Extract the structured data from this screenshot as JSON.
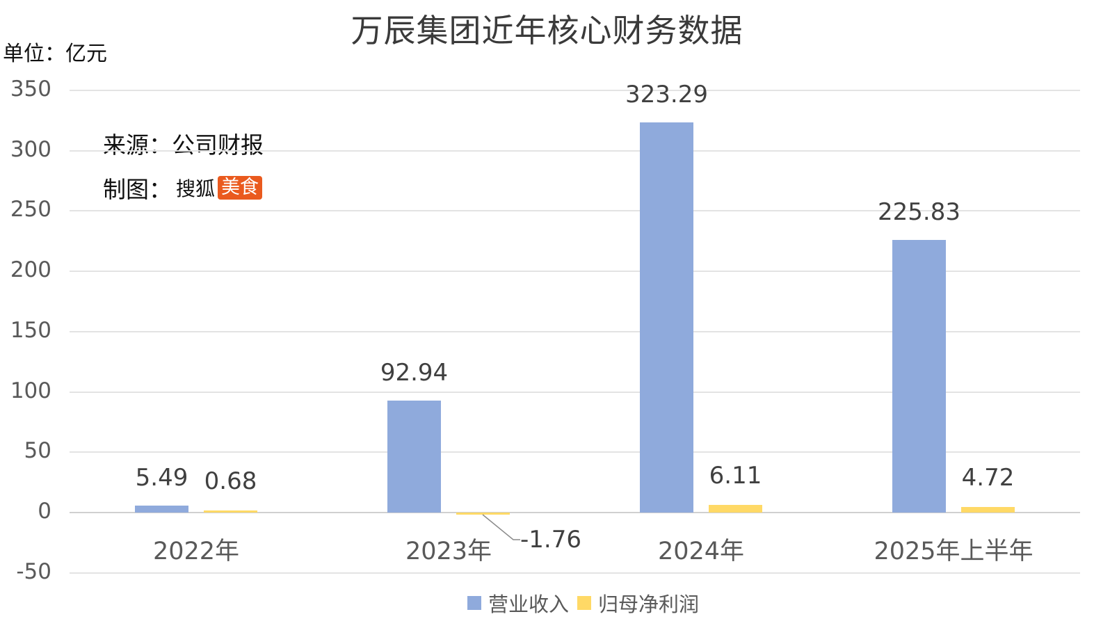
{
  "title": "万辰集团近年核心财务数据",
  "unit_label": "单位：亿元",
  "source_label": "来源：公司财报",
  "maker": {
    "prefix": "制图：",
    "brand": "搜狐",
    "badge": "美食"
  },
  "colors": {
    "revenue": "#8faadc",
    "net_profit": "#ffd966",
    "badge": "#ea5a1e"
  },
  "legend": [
    {
      "label": "营业收入",
      "color": "#8faadc"
    },
    {
      "label": "归母净利润",
      "color": "#ffd966"
    }
  ],
  "y_ticks": [
    "350",
    "300",
    "250",
    "200",
    "150",
    "100",
    "50",
    "0",
    "-50"
  ],
  "categories": [
    "2022年",
    "2023年",
    "2024年",
    "2025年上半年"
  ],
  "labels": {
    "rev": [
      "5.49",
      "92.94",
      "323.29",
      "225.83"
    ],
    "np": [
      "0.68",
      "-1.76",
      "6.11",
      "4.72"
    ]
  },
  "chart_data": {
    "type": "bar",
    "title": "万辰集团近年核心财务数据",
    "xlabel": "",
    "ylabel": "单位：亿元",
    "categories": [
      "2022年",
      "2023年",
      "2024年",
      "2025年上半年"
    ],
    "series": [
      {
        "name": "营业收入",
        "values": [
          5.49,
          92.94,
          323.29,
          225.83
        ],
        "color": "#8faadc"
      },
      {
        "name": "归母净利润",
        "values": [
          0.68,
          -1.76,
          6.11,
          4.72
        ],
        "color": "#ffd966"
      }
    ],
    "ylim": [
      -50,
      350
    ],
    "yticks": [
      -50,
      0,
      50,
      100,
      150,
      200,
      250,
      300,
      350
    ],
    "grid": true,
    "legend_position": "bottom",
    "annotations": [
      "来源：公司财报",
      "制图：搜狐美食"
    ]
  }
}
